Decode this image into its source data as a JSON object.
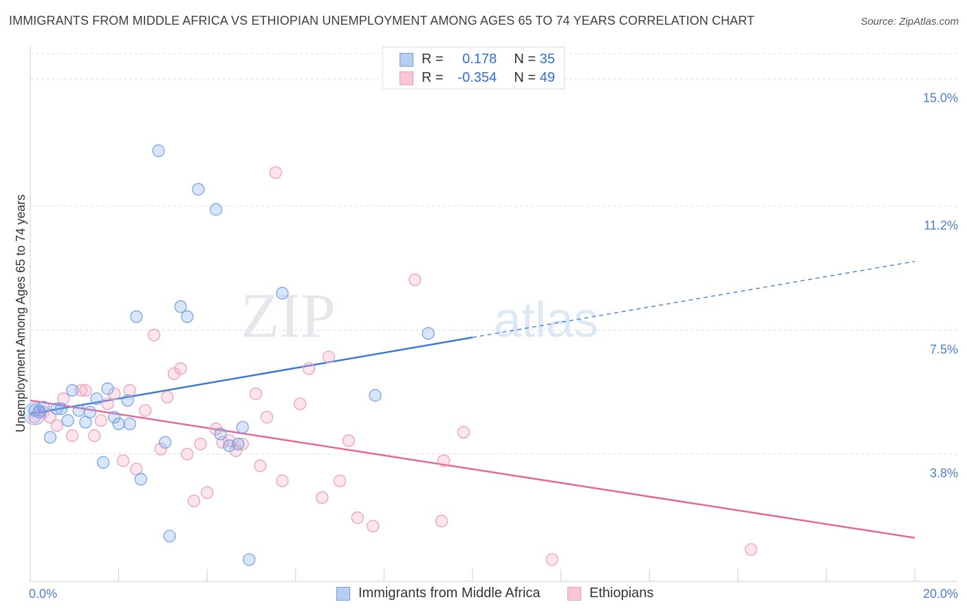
{
  "header": {
    "title": "IMMIGRANTS FROM MIDDLE AFRICA VS ETHIOPIAN UNEMPLOYMENT AMONG AGES 65 TO 74 YEARS CORRELATION CHART",
    "source": "Source: ZipAtlas.com"
  },
  "legend": {
    "blue": {
      "r_label": "R =",
      "r_value": "0.178",
      "n_label": "N =",
      "n_value": "35"
    },
    "pink": {
      "r_label": "R =",
      "r_value": "-0.354",
      "n_label": "N =",
      "n_value": "49"
    }
  },
  "bottom_legend": {
    "blue": "Immigrants from Middle Africa",
    "pink": "Ethiopians"
  },
  "colors": {
    "blue": "#3a78d4",
    "pink": "#e3689a",
    "blue_fill": "#b7cef3",
    "pink_fill": "#f8c6d6",
    "tick": "#4a7fcf"
  },
  "chart_data": {
    "type": "scatter",
    "title": "IMMIGRANTS FROM MIDDLE AFRICA VS ETHIOPIAN UNEMPLOYMENT AMONG AGES 65 TO 74 YEARS CORRELATION CHART",
    "xlabel": "",
    "ylabel": "Unemployment Among Ages 65 to 74 years",
    "xlim": [
      0,
      20
    ],
    "ylim": [
      0,
      15.75
    ],
    "x_ticks": [
      "0.0%",
      "20.0%"
    ],
    "y_ticks": [
      {
        "value": 3.8,
        "label": "3.8%"
      },
      {
        "value": 7.5,
        "label": "7.5%"
      },
      {
        "value": 11.2,
        "label": "11.2%"
      },
      {
        "value": 15.0,
        "label": "15.0%"
      }
    ],
    "watermark": "ZIPatlas",
    "series": [
      {
        "name": "Immigrants from Middle Africa",
        "color": "#3a78d4",
        "trend": {
          "x0": 0,
          "y0": 5.0,
          "x1": 10,
          "y1": 7.28,
          "dash_to_x": 20,
          "dash_to_y": 9.55
        },
        "points": [
          {
            "x": 0.1,
            "y": 5.1
          },
          {
            "x": 0.2,
            "y": 5.05
          },
          {
            "x": 0.3,
            "y": 5.2
          },
          {
            "x": 0.45,
            "y": 4.3
          },
          {
            "x": 0.6,
            "y": 5.15
          },
          {
            "x": 0.7,
            "y": 5.15
          },
          {
            "x": 0.85,
            "y": 4.8
          },
          {
            "x": 0.95,
            "y": 5.7
          },
          {
            "x": 1.1,
            "y": 5.1
          },
          {
            "x": 1.25,
            "y": 4.75
          },
          {
            "x": 1.35,
            "y": 5.05
          },
          {
            "x": 1.5,
            "y": 5.45
          },
          {
            "x": 1.65,
            "y": 3.55
          },
          {
            "x": 1.75,
            "y": 5.75
          },
          {
            "x": 1.9,
            "y": 4.9
          },
          {
            "x": 2.0,
            "y": 4.7
          },
          {
            "x": 2.2,
            "y": 5.4
          },
          {
            "x": 2.25,
            "y": 4.7
          },
          {
            "x": 2.4,
            "y": 7.9
          },
          {
            "x": 2.5,
            "y": 3.05
          },
          {
            "x": 2.9,
            "y": 12.85
          },
          {
            "x": 3.05,
            "y": 4.15
          },
          {
            "x": 3.15,
            "y": 1.35
          },
          {
            "x": 3.4,
            "y": 8.2
          },
          {
            "x": 3.55,
            "y": 7.9
          },
          {
            "x": 3.8,
            "y": 11.7
          },
          {
            "x": 4.2,
            "y": 11.1
          },
          {
            "x": 4.3,
            "y": 4.4
          },
          {
            "x": 4.5,
            "y": 4.05
          },
          {
            "x": 4.7,
            "y": 4.1
          },
          {
            "x": 4.8,
            "y": 4.6
          },
          {
            "x": 4.95,
            "y": 0.65
          },
          {
            "x": 5.7,
            "y": 8.6
          },
          {
            "x": 7.8,
            "y": 5.55
          },
          {
            "x": 9.0,
            "y": 7.4
          }
        ]
      },
      {
        "name": "Ethiopians",
        "color": "#e3689a",
        "trend": {
          "x0": 0,
          "y0": 5.4,
          "x1": 20,
          "y1": 1.3
        },
        "points": [
          {
            "x": 0.1,
            "y": 4.9
          },
          {
            "x": 0.2,
            "y": 5.1
          },
          {
            "x": 0.3,
            "y": 5.05
          },
          {
            "x": 0.45,
            "y": 4.9
          },
          {
            "x": 0.6,
            "y": 4.65
          },
          {
            "x": 0.75,
            "y": 5.45
          },
          {
            "x": 0.95,
            "y": 4.35
          },
          {
            "x": 1.15,
            "y": 5.7
          },
          {
            "x": 1.25,
            "y": 5.7
          },
          {
            "x": 1.45,
            "y": 4.35
          },
          {
            "x": 1.6,
            "y": 4.8
          },
          {
            "x": 1.75,
            "y": 5.3
          },
          {
            "x": 1.9,
            "y": 5.6
          },
          {
            "x": 2.1,
            "y": 3.6
          },
          {
            "x": 2.25,
            "y": 5.7
          },
          {
            "x": 2.4,
            "y": 3.35
          },
          {
            "x": 2.6,
            "y": 5.1
          },
          {
            "x": 2.8,
            "y": 7.35
          },
          {
            "x": 2.95,
            "y": 3.95
          },
          {
            "x": 3.1,
            "y": 5.5
          },
          {
            "x": 3.25,
            "y": 6.2
          },
          {
            "x": 3.4,
            "y": 6.35
          },
          {
            "x": 3.55,
            "y": 3.8
          },
          {
            "x": 3.7,
            "y": 2.4
          },
          {
            "x": 3.85,
            "y": 4.1
          },
          {
            "x": 4.0,
            "y": 2.65
          },
          {
            "x": 4.2,
            "y": 4.55
          },
          {
            "x": 4.35,
            "y": 4.15
          },
          {
            "x": 4.5,
            "y": 4.2
          },
          {
            "x": 4.65,
            "y": 3.9
          },
          {
            "x": 4.8,
            "y": 4.1
          },
          {
            "x": 5.1,
            "y": 5.6
          },
          {
            "x": 5.2,
            "y": 3.45
          },
          {
            "x": 5.35,
            "y": 4.9
          },
          {
            "x": 5.55,
            "y": 12.2
          },
          {
            "x": 5.7,
            "y": 3.0
          },
          {
            "x": 6.1,
            "y": 5.3
          },
          {
            "x": 6.3,
            "y": 6.35
          },
          {
            "x": 6.6,
            "y": 2.5
          },
          {
            "x": 6.75,
            "y": 6.7
          },
          {
            "x": 7.0,
            "y": 3.0
          },
          {
            "x": 7.2,
            "y": 4.2
          },
          {
            "x": 7.4,
            "y": 1.9
          },
          {
            "x": 7.75,
            "y": 1.65
          },
          {
            "x": 8.7,
            "y": 9.0
          },
          {
            "x": 9.3,
            "y": 1.8
          },
          {
            "x": 9.35,
            "y": 3.6
          },
          {
            "x": 9.8,
            "y": 4.45
          },
          {
            "x": 11.8,
            "y": 0.65
          },
          {
            "x": 16.3,
            "y": 0.95
          }
        ]
      }
    ]
  }
}
